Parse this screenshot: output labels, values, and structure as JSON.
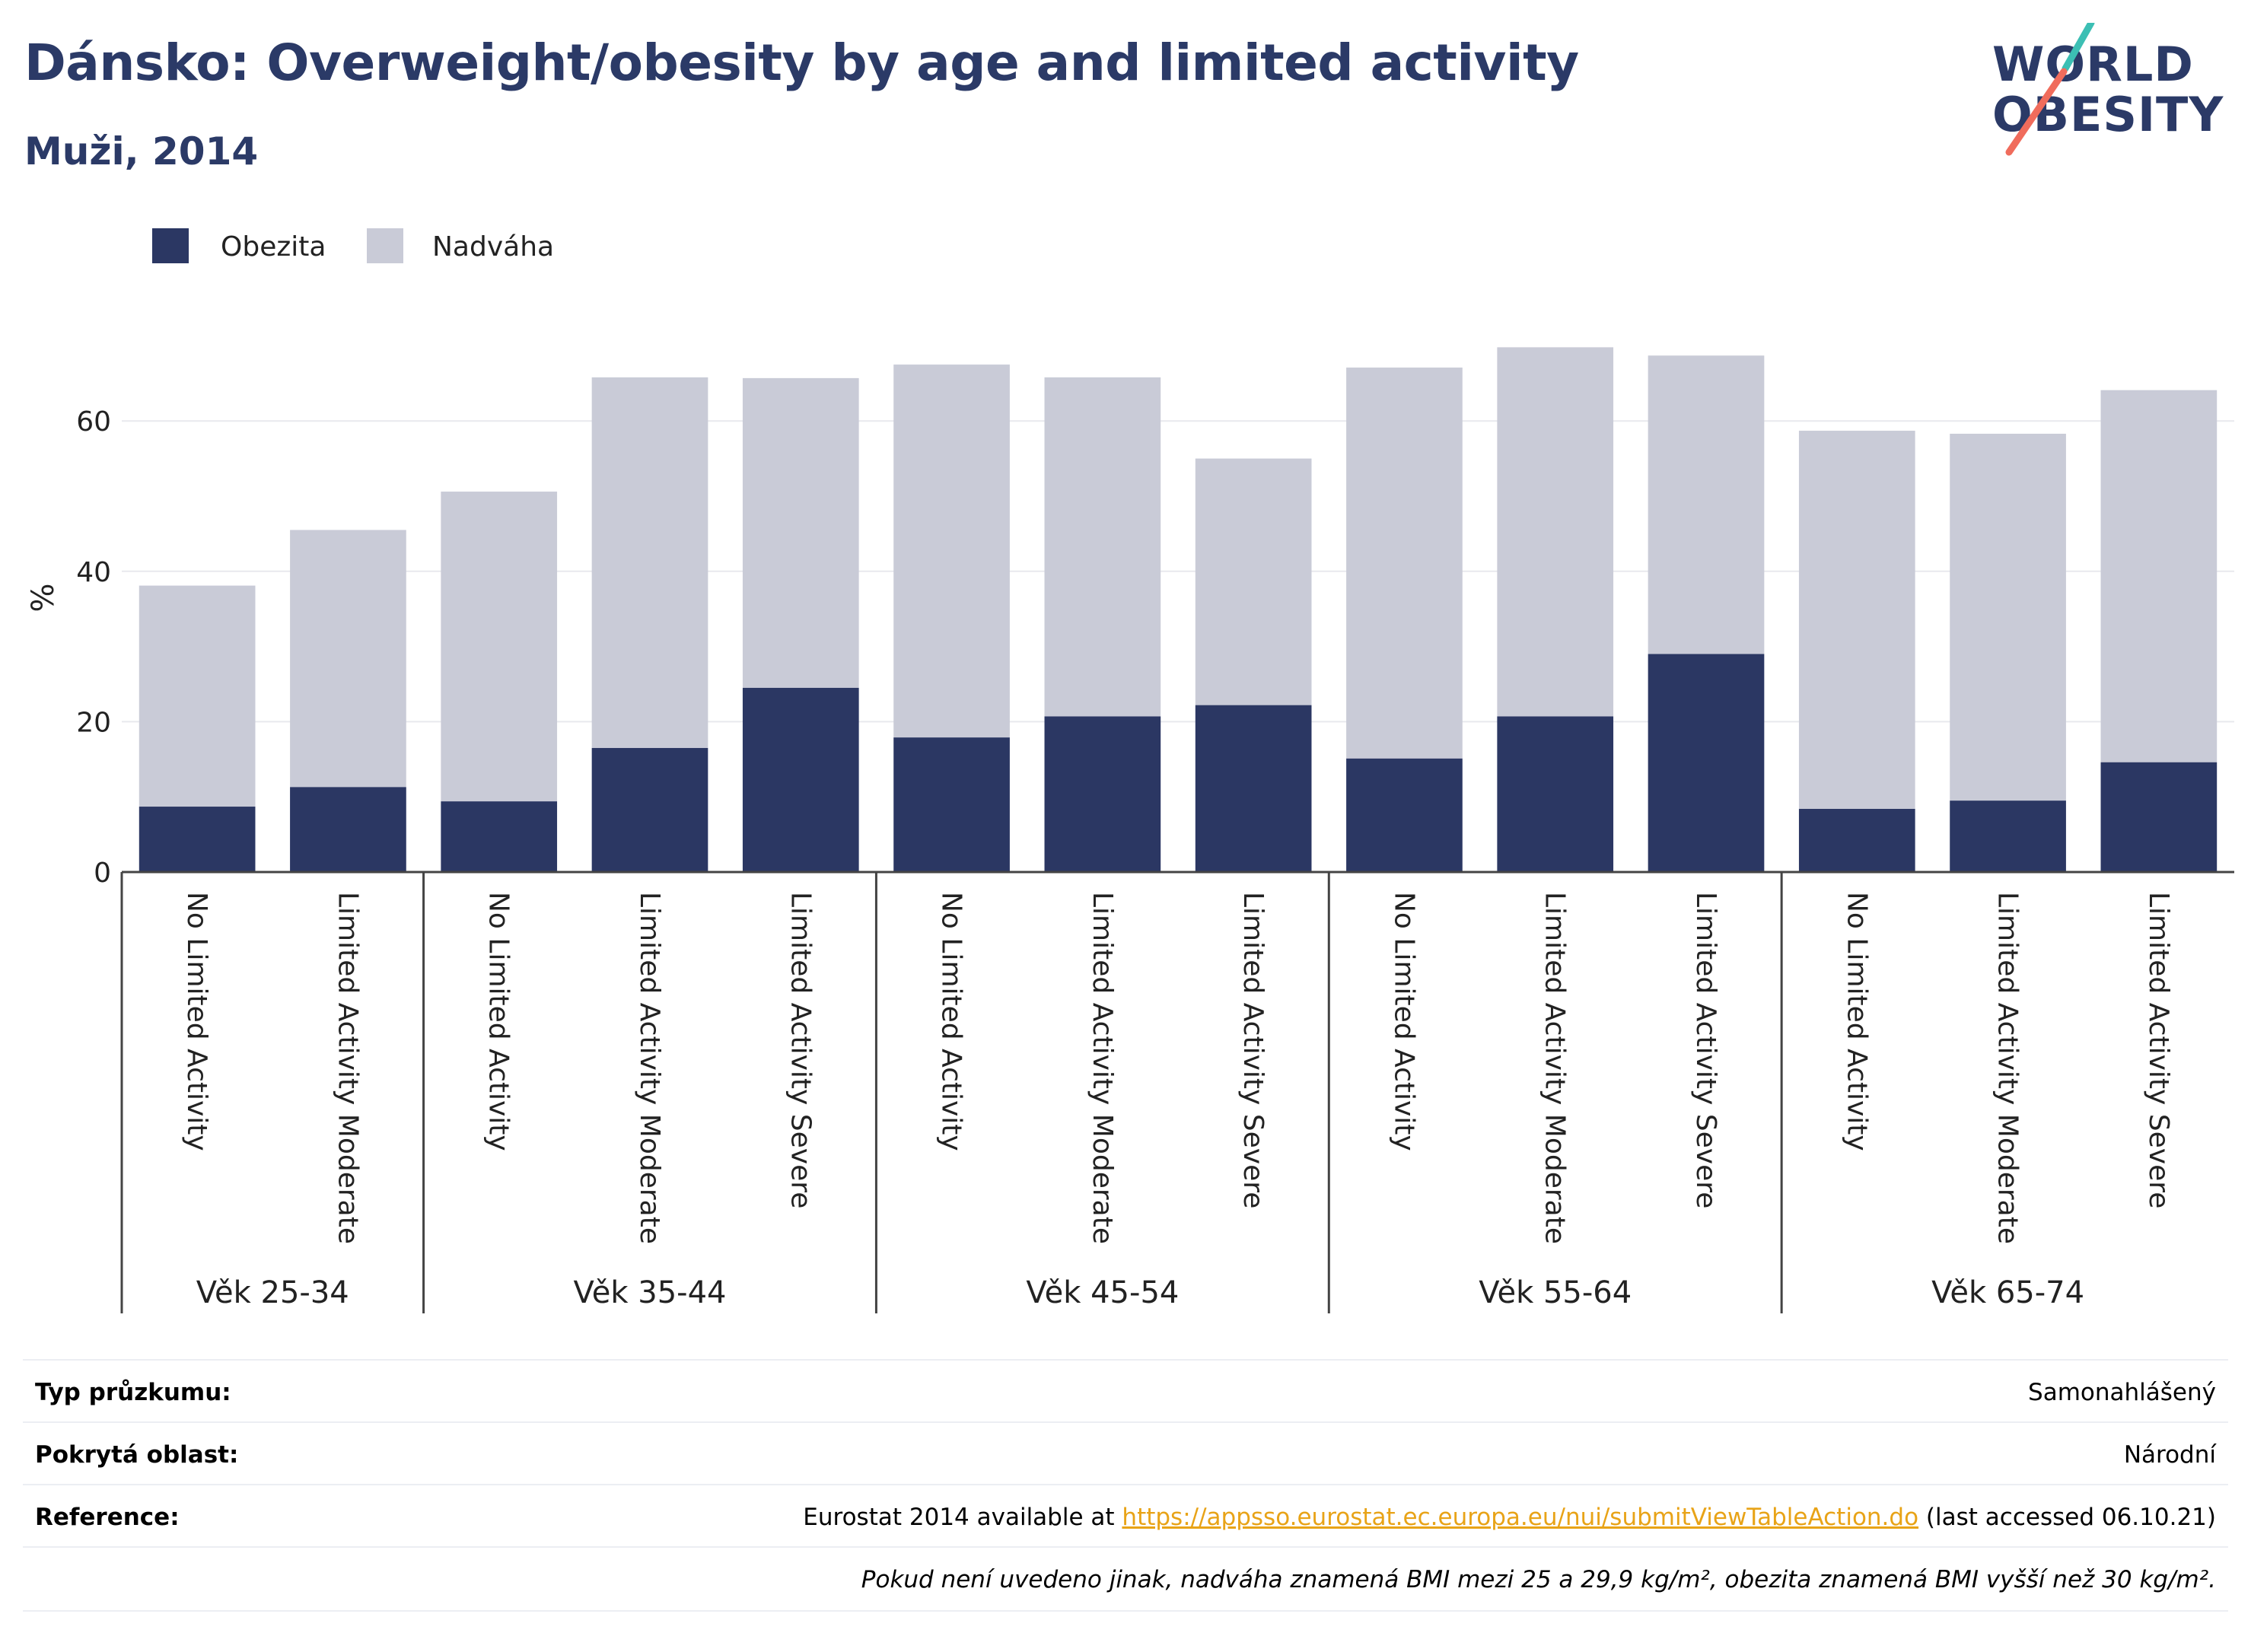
{
  "header": {
    "title": "Dánsko: Overweight/obesity by age and limited activity",
    "subtitle": "Muži, 2014"
  },
  "logo": {
    "line1": "WORLD",
    "line2": "OBESITY"
  },
  "colors": {
    "obesity": "#2b3763",
    "overweight": "#c9cbd7",
    "title": "#2b3a67",
    "link": "#e8a317",
    "logo_teal": "#3cbfb4",
    "logo_coral": "#f06c5c"
  },
  "chart_data": {
    "type": "bar",
    "stacked": true,
    "ylabel": "%",
    "ylim": [
      0,
      75
    ],
    "yticks": [
      0,
      20,
      40,
      60
    ],
    "grid": true,
    "legend_position": "top-left",
    "series": [
      {
        "name": "Obezita",
        "values": [
          8.7,
          11.3,
          9.4,
          16.5,
          24.5,
          17.9,
          20.7,
          22.2,
          15.1,
          20.7,
          29.0,
          8.4,
          9.5,
          14.6
        ]
      },
      {
        "name": "Nadváha",
        "values": [
          29.4,
          34.2,
          41.2,
          49.3,
          41.2,
          49.6,
          45.1,
          32.8,
          52.0,
          49.1,
          39.7,
          50.3,
          48.8,
          49.5
        ]
      }
    ],
    "categories": [
      "No Limited Activity",
      "Limited Activity Moderate",
      "No Limited Activity",
      "Limited Activity Moderate",
      "Limited Activity Severe",
      "No Limited Activity",
      "Limited Activity Moderate",
      "Limited Activity Severe",
      "No Limited Activity",
      "Limited Activity Moderate",
      "Limited Activity Severe",
      "No Limited Activity",
      "Limited Activity Moderate",
      "Limited Activity Severe"
    ],
    "groups": [
      {
        "label": "Věk 25-34",
        "count": 2
      },
      {
        "label": "Věk 35-44",
        "count": 3
      },
      {
        "label": "Věk 45-54",
        "count": 3
      },
      {
        "label": "Věk 55-64",
        "count": 3
      },
      {
        "label": "Věk 65-74",
        "count": 3
      }
    ]
  },
  "info": {
    "survey_label": "Typ průzkumu:",
    "survey_value": "Samonahlášený",
    "area_label": "Pokrytá oblast:",
    "area_value": "Národní",
    "reference_label": "Reference:",
    "reference_prefix": "Eurostat 2014 available at",
    "reference_link": "https://appsso.eurostat.ec.europa.eu/nui/submitViewTableAction.do",
    "reference_suffix": "(last accessed 06.10.21)",
    "note": "Pokud není uvedeno jinak, nadváha znamená BMI mezi 25 a 29,9 kg/m², obezita znamená BMI vyšší než 30 kg/m²."
  }
}
